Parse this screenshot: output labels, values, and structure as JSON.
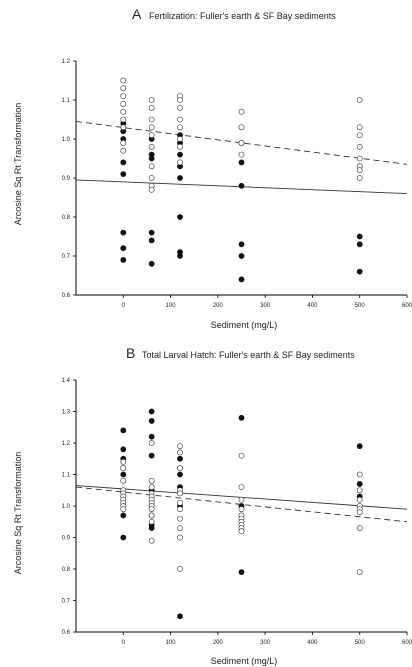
{
  "chart_data": [
    {
      "type": "scatter",
      "panel_letter": "A",
      "title": "Fertilization: Fuller's earth & SF Bay sediments",
      "xlabel": "Sediment (mg/L)",
      "ylabel": "Arcosine Sq Rt Transformation",
      "xlim": [
        -100,
        600
      ],
      "ylim": [
        0.6,
        1.2
      ],
      "x_ticks": [
        "0",
        "100",
        "200",
        "300",
        "400",
        "500",
        "600"
      ],
      "y_ticks": [
        "0.6",
        "0.7",
        "0.8",
        "0.9",
        "1.0",
        "1.1",
        "1.2"
      ],
      "grid": false,
      "series": [
        {
          "marker": "filled",
          "points": [
            [
              0,
              1.04
            ],
            [
              0,
              1.02
            ],
            [
              0,
              1.0
            ],
            [
              0,
              0.94
            ],
            [
              0,
              0.91
            ],
            [
              0,
              0.76
            ],
            [
              0,
              0.72
            ],
            [
              0,
              0.69
            ],
            [
              60,
              1.0
            ],
            [
              60,
              0.96
            ],
            [
              60,
              0.95
            ],
            [
              60,
              0.76
            ],
            [
              60,
              0.74
            ],
            [
              60,
              0.68
            ],
            [
              120,
              1.01
            ],
            [
              120,
              0.99
            ],
            [
              120,
              0.96
            ],
            [
              120,
              0.93
            ],
            [
              120,
              0.9
            ],
            [
              120,
              0.8
            ],
            [
              120,
              0.71
            ],
            [
              120,
              0.7
            ],
            [
              250,
              0.99
            ],
            [
              250,
              0.94
            ],
            [
              250,
              0.88
            ],
            [
              250,
              0.73
            ],
            [
              250,
              0.7
            ],
            [
              250,
              0.64
            ],
            [
              500,
              0.93
            ],
            [
              500,
              0.75
            ],
            [
              500,
              0.73
            ],
            [
              500,
              0.66
            ]
          ]
        },
        {
          "marker": "open",
          "points": [
            [
              0,
              1.15
            ],
            [
              0,
              1.13
            ],
            [
              0,
              1.11
            ],
            [
              0,
              1.09
            ],
            [
              0,
              1.07
            ],
            [
              0,
              1.05
            ],
            [
              0,
              1.03
            ],
            [
              0,
              0.99
            ],
            [
              0,
              0.97
            ],
            [
              60,
              1.1
            ],
            [
              60,
              1.08
            ],
            [
              60,
              1.05
            ],
            [
              60,
              1.03
            ],
            [
              60,
              1.01
            ],
            [
              60,
              0.98
            ],
            [
              60,
              0.93
            ],
            [
              60,
              0.9
            ],
            [
              60,
              0.88
            ],
            [
              60,
              0.87
            ],
            [
              120,
              1.11
            ],
            [
              120,
              1.1
            ],
            [
              120,
              1.08
            ],
            [
              120,
              1.05
            ],
            [
              120,
              1.03
            ],
            [
              120,
              1.0
            ],
            [
              120,
              0.98
            ],
            [
              120,
              0.94
            ],
            [
              250,
              1.07
            ],
            [
              250,
              1.03
            ],
            [
              250,
              0.99
            ],
            [
              250,
              0.96
            ],
            [
              500,
              1.1
            ],
            [
              500,
              1.03
            ],
            [
              500,
              1.01
            ],
            [
              500,
              0.98
            ],
            [
              500,
              0.95
            ],
            [
              500,
              0.93
            ],
            [
              500,
              0.92
            ],
            [
              500,
              0.9
            ]
          ]
        }
      ],
      "fit_lines": [
        {
          "style": "dashed",
          "x": [
            -100,
            600
          ],
          "y": [
            1.045,
            0.935
          ]
        },
        {
          "style": "solid",
          "x": [
            -100,
            600
          ],
          "y": [
            0.895,
            0.86
          ]
        }
      ]
    },
    {
      "type": "scatter",
      "panel_letter": "B",
      "title": "Total Larval Hatch: Fuller's earth & SF Bay sediments",
      "xlabel": "Sediment (mg/L)",
      "ylabel": "Arcosine Sq Rt Transformation",
      "xlim": [
        -100,
        600
      ],
      "ylim": [
        0.6,
        1.4
      ],
      "x_ticks": [
        "0",
        "100",
        "200",
        "300",
        "400",
        "500",
        "600"
      ],
      "y_ticks": [
        "0.6",
        "0.7",
        "0.8",
        "0.9",
        "1.0",
        "1.1",
        "1.2",
        "1.3",
        "1.4"
      ],
      "grid": false,
      "series": [
        {
          "marker": "filled",
          "points": [
            [
              0,
              1.24
            ],
            [
              0,
              1.18
            ],
            [
              0,
              1.15
            ],
            [
              0,
              1.1
            ],
            [
              0,
              0.97
            ],
            [
              0,
              0.9
            ],
            [
              60,
              1.3
            ],
            [
              60,
              1.27
            ],
            [
              60,
              1.22
            ],
            [
              60,
              1.16
            ],
            [
              60,
              1.05
            ],
            [
              60,
              1.0
            ],
            [
              60,
              0.97
            ],
            [
              60,
              0.94
            ],
            [
              60,
              0.93
            ],
            [
              120,
              1.15
            ],
            [
              120,
              1.12
            ],
            [
              120,
              1.1
            ],
            [
              120,
              1.06
            ],
            [
              120,
              1.0
            ],
            [
              120,
              0.65
            ],
            [
              250,
              1.28
            ],
            [
              250,
              1.0
            ],
            [
              250,
              0.79
            ],
            [
              500,
              1.19
            ],
            [
              500,
              1.07
            ],
            [
              500,
              1.03
            ]
          ]
        },
        {
          "marker": "open",
          "points": [
            [
              0,
              1.14
            ],
            [
              0,
              1.12
            ],
            [
              0,
              1.08
            ],
            [
              0,
              1.05
            ],
            [
              0,
              1.04
            ],
            [
              0,
              1.03
            ],
            [
              0,
              1.02
            ],
            [
              0,
              1.01
            ],
            [
              0,
              1.0
            ],
            [
              0,
              0.99
            ],
            [
              60,
              1.2
            ],
            [
              60,
              1.08
            ],
            [
              60,
              1.06
            ],
            [
              60,
              1.04
            ],
            [
              60,
              1.03
            ],
            [
              60,
              1.02
            ],
            [
              60,
              1.01
            ],
            [
              60,
              1.0
            ],
            [
              60,
              0.99
            ],
            [
              60,
              0.97
            ],
            [
              60,
              0.95
            ],
            [
              60,
              0.89
            ],
            [
              120,
              1.19
            ],
            [
              120,
              1.17
            ],
            [
              120,
              1.12
            ],
            [
              120,
              1.05
            ],
            [
              120,
              1.04
            ],
            [
              120,
              1.01
            ],
            [
              120,
              0.99
            ],
            [
              120,
              0.96
            ],
            [
              120,
              0.93
            ],
            [
              120,
              0.9
            ],
            [
              120,
              0.8
            ],
            [
              250,
              1.16
            ],
            [
              250,
              1.06
            ],
            [
              250,
              1.02
            ],
            [
              250,
              0.99
            ],
            [
              250,
              0.97
            ],
            [
              250,
              0.96
            ],
            [
              250,
              0.95
            ],
            [
              250,
              0.94
            ],
            [
              250,
              0.93
            ],
            [
              250,
              0.92
            ],
            [
              500,
              1.1
            ],
            [
              500,
              1.05
            ],
            [
              500,
              1.02
            ],
            [
              500,
              1.0
            ],
            [
              500,
              0.99
            ],
            [
              500,
              0.98
            ],
            [
              500,
              0.93
            ],
            [
              500,
              0.79
            ]
          ]
        }
      ],
      "fit_lines": [
        {
          "style": "solid",
          "x": [
            -100,
            600
          ],
          "y": [
            1.065,
            0.99
          ]
        },
        {
          "style": "dashed",
          "x": [
            -100,
            600
          ],
          "y": [
            1.06,
            0.95
          ]
        }
      ]
    }
  ]
}
